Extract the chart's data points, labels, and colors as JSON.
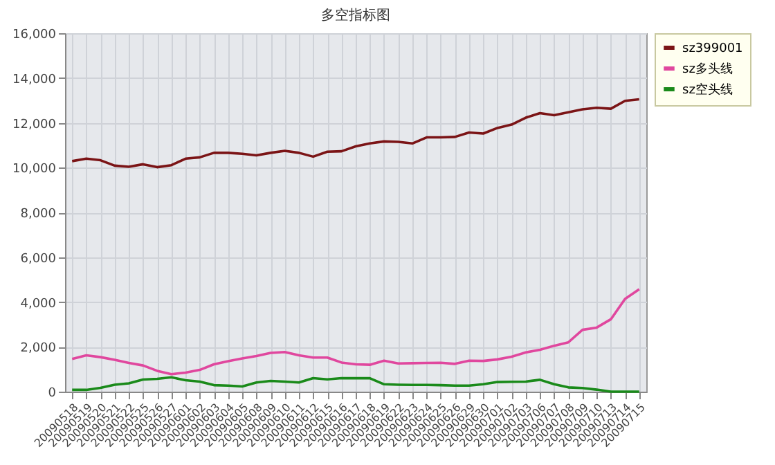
{
  "chart_data": {
    "type": "line",
    "title": "多空指标图",
    "categories": [
      "20090518",
      "20090519",
      "20090520",
      "20090521",
      "20090522",
      "20090525",
      "20090526",
      "20090527",
      "20090601",
      "20090602",
      "20090603",
      "20090604",
      "20090605",
      "20090608",
      "20090609",
      "20090610",
      "20090611",
      "20090612",
      "20090615",
      "20090616",
      "20090617",
      "20090618",
      "20090619",
      "20090622",
      "20090623",
      "20090624",
      "20090625",
      "20090626",
      "20090629",
      "20090630",
      "20090701",
      "20090702",
      "20090703",
      "20090706",
      "20090707",
      "20090708",
      "20090709",
      "20090710",
      "20090713",
      "20090714",
      "20090715"
    ],
    "series": [
      {
        "name": "sz399001",
        "color": "#7b1416",
        "values": [
          10290,
          10400,
          10330,
          10090,
          10040,
          10150,
          10020,
          10110,
          10400,
          10460,
          10660,
          10660,
          10620,
          10550,
          10660,
          10750,
          10660,
          10490,
          10710,
          10730,
          10950,
          11080,
          11170,
          11150,
          11080,
          11350,
          11350,
          11370,
          11570,
          11520,
          11770,
          11920,
          12230,
          12430,
          12340,
          12470,
          12600,
          12670,
          12630,
          12980,
          13050
        ]
      },
      {
        "name": "sz多头线",
        "color": "#e0479e",
        "values": [
          1460,
          1620,
          1540,
          1420,
          1280,
          1170,
          930,
          780,
          850,
          970,
          1220,
          1360,
          1480,
          1590,
          1730,
          1770,
          1620,
          1520,
          1520,
          1300,
          1220,
          1200,
          1380,
          1260,
          1270,
          1280,
          1290,
          1240,
          1380,
          1370,
          1440,
          1560,
          1750,
          1870,
          2050,
          2200,
          2760,
          2860,
          3230,
          4140,
          4570
        ]
      },
      {
        "name": "sz空头线",
        "color": "#1a8a1a",
        "values": [
          80,
          80,
          170,
          310,
          370,
          540,
          570,
          640,
          510,
          450,
          290,
          270,
          230,
          410,
          480,
          450,
          410,
          600,
          550,
          600,
          600,
          600,
          330,
          310,
          300,
          300,
          290,
          270,
          270,
          330,
          430,
          440,
          450,
          530,
          330,
          190,
          160,
          90,
          0,
          0,
          0
        ]
      }
    ],
    "ylim": [
      0,
      16000
    ],
    "yticks": [
      0,
      {
        "value": 2000,
        "label": "2,000"
      },
      {
        "value": 4000,
        "label": "4,000"
      },
      {
        "value": 6000,
        "label": "6,000"
      },
      {
        "value": 8000,
        "label": "8,000"
      },
      {
        "value": 10000,
        "label": "10,000"
      },
      {
        "value": 12000,
        "label": "12,000"
      },
      {
        "value": 14000,
        "label": "14,000"
      },
      {
        "value": 16000,
        "label": "16,000"
      }
    ],
    "grid": true,
    "legend": "top right",
    "marker": "none",
    "line_style": "solid"
  }
}
